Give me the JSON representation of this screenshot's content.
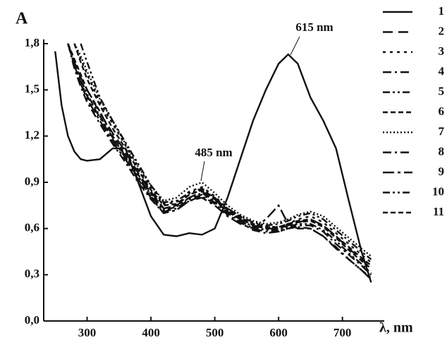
{
  "chart_data": {
    "type": "line",
    "panel_label": "A",
    "x_label": "λ, nm",
    "annotations": [
      "615 nm",
      "485 nm"
    ],
    "x": [
      250,
      260,
      270,
      280,
      290,
      300,
      320,
      340,
      360,
      380,
      400,
      420,
      440,
      460,
      480,
      500,
      520,
      540,
      560,
      580,
      600,
      615,
      630,
      650,
      670,
      690,
      710,
      730,
      745
    ],
    "xlim": [
      232,
      760
    ],
    "xticks": [
      300,
      400,
      500,
      600,
      700
    ],
    "ylim": [
      0,
      1.8
    ],
    "yticks": [
      {
        "value": 0,
        "label": "0,0"
      },
      {
        "value": 0.3,
        "label": "0,3"
      },
      {
        "value": 0.6,
        "label": "0,6"
      },
      {
        "value": 0.9,
        "label": "0,9"
      },
      {
        "value": 1.2,
        "label": "1,2"
      },
      {
        "value": 1.5,
        "label": "1,5"
      },
      {
        "value": 1.8,
        "label": "1,8"
      }
    ],
    "series": [
      {
        "name": "1",
        "color": "#111111",
        "dash": "solid",
        "values": [
          1.75,
          1.4,
          1.2,
          1.1,
          1.05,
          1.04,
          1.05,
          1.12,
          1.12,
          0.9,
          0.68,
          0.56,
          0.55,
          0.57,
          0.56,
          0.6,
          0.8,
          1.05,
          1.3,
          1.5,
          1.67,
          1.73,
          1.67,
          1.45,
          1.3,
          1.12,
          0.78,
          0.45,
          0.25
        ]
      },
      {
        "name": "2",
        "color": "#111111",
        "dash": "longdash",
        "values": [
          null,
          null,
          1.8,
          1.68,
          1.58,
          1.5,
          1.35,
          1.22,
          1.1,
          0.96,
          0.84,
          0.73,
          0.75,
          0.8,
          0.84,
          0.79,
          0.71,
          0.66,
          0.62,
          0.6,
          0.6,
          0.62,
          0.64,
          0.66,
          0.62,
          0.55,
          0.47,
          0.4,
          0.34
        ]
      },
      {
        "name": "3",
        "color": "#111111",
        "dash": "dot",
        "values": [
          null,
          null,
          null,
          1.8,
          1.7,
          1.6,
          1.42,
          1.28,
          1.14,
          1.0,
          0.87,
          0.76,
          0.77,
          0.84,
          0.87,
          0.81,
          0.73,
          0.68,
          0.63,
          0.61,
          0.61,
          0.63,
          0.66,
          0.68,
          0.64,
          0.57,
          0.5,
          0.43,
          0.38
        ]
      },
      {
        "name": "4",
        "color": "#111111",
        "dash": "dashdot",
        "values": [
          null,
          null,
          1.8,
          1.66,
          1.55,
          1.46,
          1.32,
          1.18,
          1.06,
          0.93,
          0.81,
          0.71,
          0.73,
          0.79,
          0.82,
          0.77,
          0.7,
          0.65,
          0.6,
          0.58,
          0.58,
          0.6,
          0.62,
          0.62,
          0.58,
          0.5,
          0.43,
          0.36,
          0.3
        ]
      },
      {
        "name": "5",
        "color": "#111111",
        "dash": "dashdotdot",
        "values": [
          null,
          null,
          null,
          null,
          1.8,
          1.68,
          1.45,
          1.3,
          1.16,
          1.02,
          0.88,
          0.77,
          0.78,
          0.83,
          0.86,
          0.8,
          0.73,
          0.68,
          0.64,
          0.62,
          0.63,
          0.65,
          0.68,
          0.7,
          0.66,
          0.59,
          0.52,
          0.45,
          0.4
        ]
      },
      {
        "name": "6",
        "color": "#111111",
        "dash": "shortdash",
        "values": [
          null,
          null,
          1.8,
          1.7,
          1.6,
          1.5,
          1.36,
          1.2,
          1.08,
          0.95,
          0.83,
          0.73,
          0.75,
          0.82,
          0.85,
          0.79,
          0.72,
          0.67,
          0.62,
          0.6,
          0.6,
          0.62,
          0.64,
          0.65,
          0.61,
          0.54,
          0.46,
          0.39,
          0.34
        ]
      },
      {
        "name": "7",
        "color": "#111111",
        "dash": "dotted",
        "values": [
          null,
          null,
          null,
          1.8,
          1.72,
          1.62,
          1.44,
          1.3,
          1.15,
          1.0,
          0.88,
          0.78,
          0.8,
          0.87,
          0.9,
          0.83,
          0.75,
          0.69,
          0.65,
          0.63,
          0.64,
          0.66,
          0.69,
          0.71,
          0.68,
          0.61,
          0.54,
          0.47,
          0.42
        ]
      },
      {
        "name": "8",
        "color": "#111111",
        "dash": "dashdot",
        "values": [
          null,
          null,
          1.8,
          1.64,
          1.52,
          1.42,
          1.28,
          1.15,
          1.03,
          0.9,
          0.79,
          0.7,
          0.72,
          0.78,
          0.81,
          0.76,
          0.69,
          0.64,
          0.59,
          0.57,
          0.58,
          0.6,
          0.61,
          0.6,
          0.55,
          0.48,
          0.4,
          0.33,
          0.28
        ]
      },
      {
        "name": "9",
        "color": "#111111",
        "dash": "longdashdot",
        "values": [
          null,
          null,
          1.8,
          1.66,
          1.54,
          1.44,
          1.3,
          1.16,
          1.05,
          0.92,
          0.8,
          0.7,
          0.72,
          0.78,
          0.8,
          0.75,
          0.68,
          0.63,
          0.6,
          0.66,
          0.75,
          0.63,
          0.6,
          0.6,
          0.55,
          0.47,
          0.4,
          0.33,
          0.27
        ]
      },
      {
        "name": "10",
        "color": "#111111",
        "dash": "dashdotdot",
        "values": [
          null,
          null,
          1.8,
          1.68,
          1.57,
          1.47,
          1.33,
          1.19,
          1.07,
          0.94,
          0.82,
          0.72,
          0.74,
          0.8,
          0.83,
          0.78,
          0.71,
          0.66,
          0.61,
          0.59,
          0.59,
          0.61,
          0.63,
          0.63,
          0.59,
          0.52,
          0.44,
          0.37,
          0.31
        ]
      },
      {
        "name": "11",
        "color": "#111111",
        "dash": "shortdash",
        "values": [
          null,
          null,
          null,
          1.8,
          1.68,
          1.57,
          1.4,
          1.25,
          1.12,
          0.98,
          0.85,
          0.75,
          0.76,
          0.82,
          0.85,
          0.8,
          0.72,
          0.67,
          0.63,
          0.61,
          0.61,
          0.63,
          0.65,
          0.66,
          0.62,
          0.55,
          0.48,
          0.41,
          0.36
        ]
      }
    ]
  }
}
